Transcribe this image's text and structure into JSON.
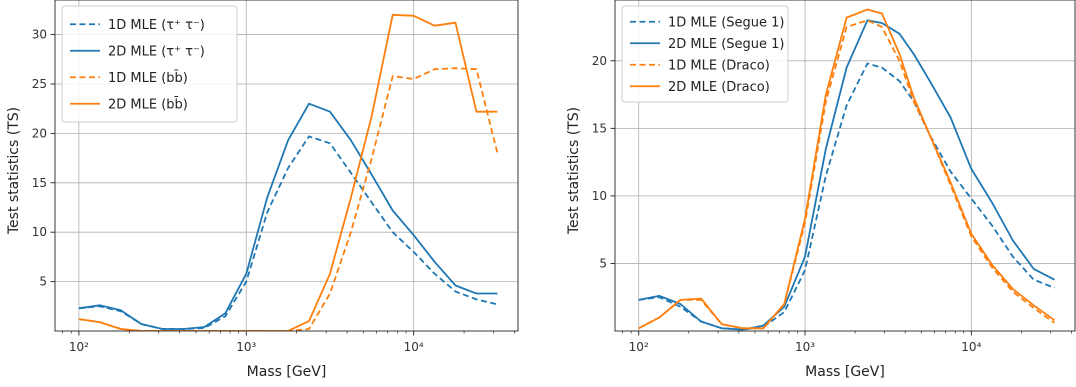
{
  "chart_data": [
    {
      "type": "line",
      "xlabel": "Mass [GeV]",
      "ylabel": "Test statistics (TS)",
      "xscale": "log",
      "xlim": [
        72,
        42000
      ],
      "ylim": [
        0,
        33.5
      ],
      "grid": true,
      "legend_position": "top-left",
      "x_ticks": [
        {
          "value": 100,
          "label": "10²"
        },
        {
          "value": 1000,
          "label": "10³"
        },
        {
          "value": 10000,
          "label": "10⁴"
        }
      ],
      "y_ticks": [
        5,
        10,
        15,
        20,
        25,
        30
      ],
      "series": [
        {
          "name": "1D MLE (τ⁺ τ⁻)",
          "color": "#1f77b4",
          "style": "dashed",
          "x": [
            100,
            133,
            178,
            237,
            316,
            422,
            562,
            750,
            1000,
            1334,
            1778,
            2371,
            3162,
            4217,
            5623,
            7499,
            10000,
            13335,
            17783,
            23714,
            31623
          ],
          "y": [
            2.3,
            2.5,
            2.0,
            0.7,
            0.2,
            0.2,
            0.3,
            1.5,
            5.0,
            12.0,
            16.5,
            19.7,
            19.0,
            16.0,
            13.0,
            10.0,
            8.0,
            5.8,
            4.0,
            3.2,
            2.7
          ]
        },
        {
          "name": "2D MLE (τ⁺ τ⁻)",
          "color": "#1f77b4",
          "style": "solid",
          "x": [
            100,
            133,
            178,
            237,
            316,
            422,
            562,
            750,
            1000,
            1334,
            1778,
            2371,
            3162,
            4217,
            5623,
            7499,
            10000,
            13335,
            17783,
            23714,
            31623
          ],
          "y": [
            2.3,
            2.6,
            2.1,
            0.7,
            0.2,
            0.2,
            0.4,
            1.8,
            5.8,
            13.5,
            19.3,
            23.0,
            22.2,
            19.3,
            15.8,
            12.2,
            9.7,
            7.0,
            4.6,
            3.8,
            3.8
          ]
        },
        {
          "name": "1D MLE (bb̄)",
          "color": "#ff7f0e",
          "style": "dashed",
          "x": [
            100,
            133,
            178,
            237,
            316,
            422,
            562,
            750,
            1000,
            1334,
            1778,
            2371,
            3162,
            4217,
            5623,
            7499,
            10000,
            13335,
            17783,
            23714,
            31623
          ],
          "y": [
            1.2,
            0.9,
            0.2,
            0,
            0,
            0,
            0,
            0,
            0,
            0,
            0,
            0.2,
            3.8,
            10.0,
            17.5,
            25.8,
            25.5,
            26.5,
            26.6,
            26.5,
            18.0
          ]
        },
        {
          "name": "2D MLE (bb̄)",
          "color": "#ff7f0e",
          "style": "solid",
          "x": [
            100,
            133,
            178,
            237,
            316,
            422,
            562,
            750,
            1000,
            1334,
            1778,
            2371,
            3162,
            4217,
            5623,
            7499,
            10000,
            13335,
            17783,
            23714,
            31623
          ],
          "y": [
            1.2,
            0.9,
            0.2,
            0,
            0,
            0,
            0,
            0,
            0,
            0,
            0,
            1.0,
            5.8,
            13.5,
            21.8,
            32.0,
            31.9,
            30.9,
            31.2,
            22.2,
            22.2
          ]
        }
      ]
    },
    {
      "type": "line",
      "xlabel": "Mass [GeV]",
      "ylabel": "Test statistics (TS)",
      "xscale": "log",
      "xlim": [
        72,
        42000
      ],
      "ylim": [
        0,
        24.5
      ],
      "grid": true,
      "legend_position": "top-left",
      "x_ticks": [
        {
          "value": 100,
          "label": "10²"
        },
        {
          "value": 1000,
          "label": "10³"
        },
        {
          "value": 10000,
          "label": "10⁴"
        }
      ],
      "y_ticks": [
        5,
        10,
        15,
        20
      ],
      "series": [
        {
          "name": "1D MLE (Segue 1)",
          "color": "#1f77b4",
          "style": "dashed",
          "x": [
            100,
            133,
            178,
            237,
            316,
            422,
            562,
            750,
            1000,
            1334,
            1778,
            2371,
            2900,
            3700,
            4500,
            5623,
            7499,
            10000,
            13335,
            17783,
            23714,
            31623
          ],
          "y": [
            2.3,
            2.5,
            1.8,
            0.7,
            0.2,
            0.1,
            0.3,
            1.4,
            4.5,
            11.5,
            16.7,
            19.8,
            19.5,
            18.5,
            17.0,
            14.5,
            11.8,
            9.8,
            7.8,
            5.5,
            3.8,
            3.2
          ]
        },
        {
          "name": "2D MLE (Segue 1)",
          "color": "#1f77b4",
          "style": "solid",
          "x": [
            100,
            133,
            178,
            237,
            316,
            422,
            562,
            750,
            1000,
            1334,
            1778,
            2371,
            2900,
            3700,
            4500,
            5623,
            7499,
            10000,
            13335,
            17783,
            23714,
            31623
          ],
          "y": [
            2.3,
            2.6,
            2.0,
            0.7,
            0.2,
            0.1,
            0.4,
            1.8,
            5.5,
            13.5,
            19.5,
            23.0,
            22.8,
            22.0,
            20.5,
            18.5,
            15.8,
            12.0,
            9.5,
            6.7,
            4.6,
            3.8
          ]
        },
        {
          "name": "1D MLE (Draco)",
          "color": "#ff7f0e",
          "style": "dashed",
          "x": [
            100,
            133,
            178,
            237,
            316,
            422,
            562,
            750,
            1000,
            1334,
            1778,
            2371,
            2900,
            3700,
            4500,
            5623,
            7499,
            10000,
            13335,
            17783,
            23714,
            31623
          ],
          "y": [
            0.2,
            1.0,
            2.3,
            2.3,
            0.5,
            0.2,
            0.2,
            2.0,
            8.0,
            17.0,
            22.5,
            23.0,
            22.5,
            20.0,
            17.0,
            14.5,
            10.8,
            7.0,
            4.7,
            2.9,
            1.7,
            0.6
          ]
        },
        {
          "name": "2D MLE (Draco)",
          "color": "#ff7f0e",
          "style": "solid",
          "x": [
            100,
            133,
            178,
            237,
            316,
            422,
            562,
            750,
            1000,
            1334,
            1778,
            2371,
            2900,
            3700,
            4500,
            5623,
            7499,
            10000,
            13335,
            17783,
            23714,
            31623
          ],
          "y": [
            0.2,
            1.0,
            2.3,
            2.4,
            0.5,
            0.2,
            0.2,
            2.0,
            8.3,
            17.5,
            23.2,
            23.8,
            23.5,
            20.5,
            17.3,
            14.5,
            11.0,
            7.2,
            4.9,
            3.1,
            1.9,
            0.8
          ]
        }
      ]
    }
  ]
}
